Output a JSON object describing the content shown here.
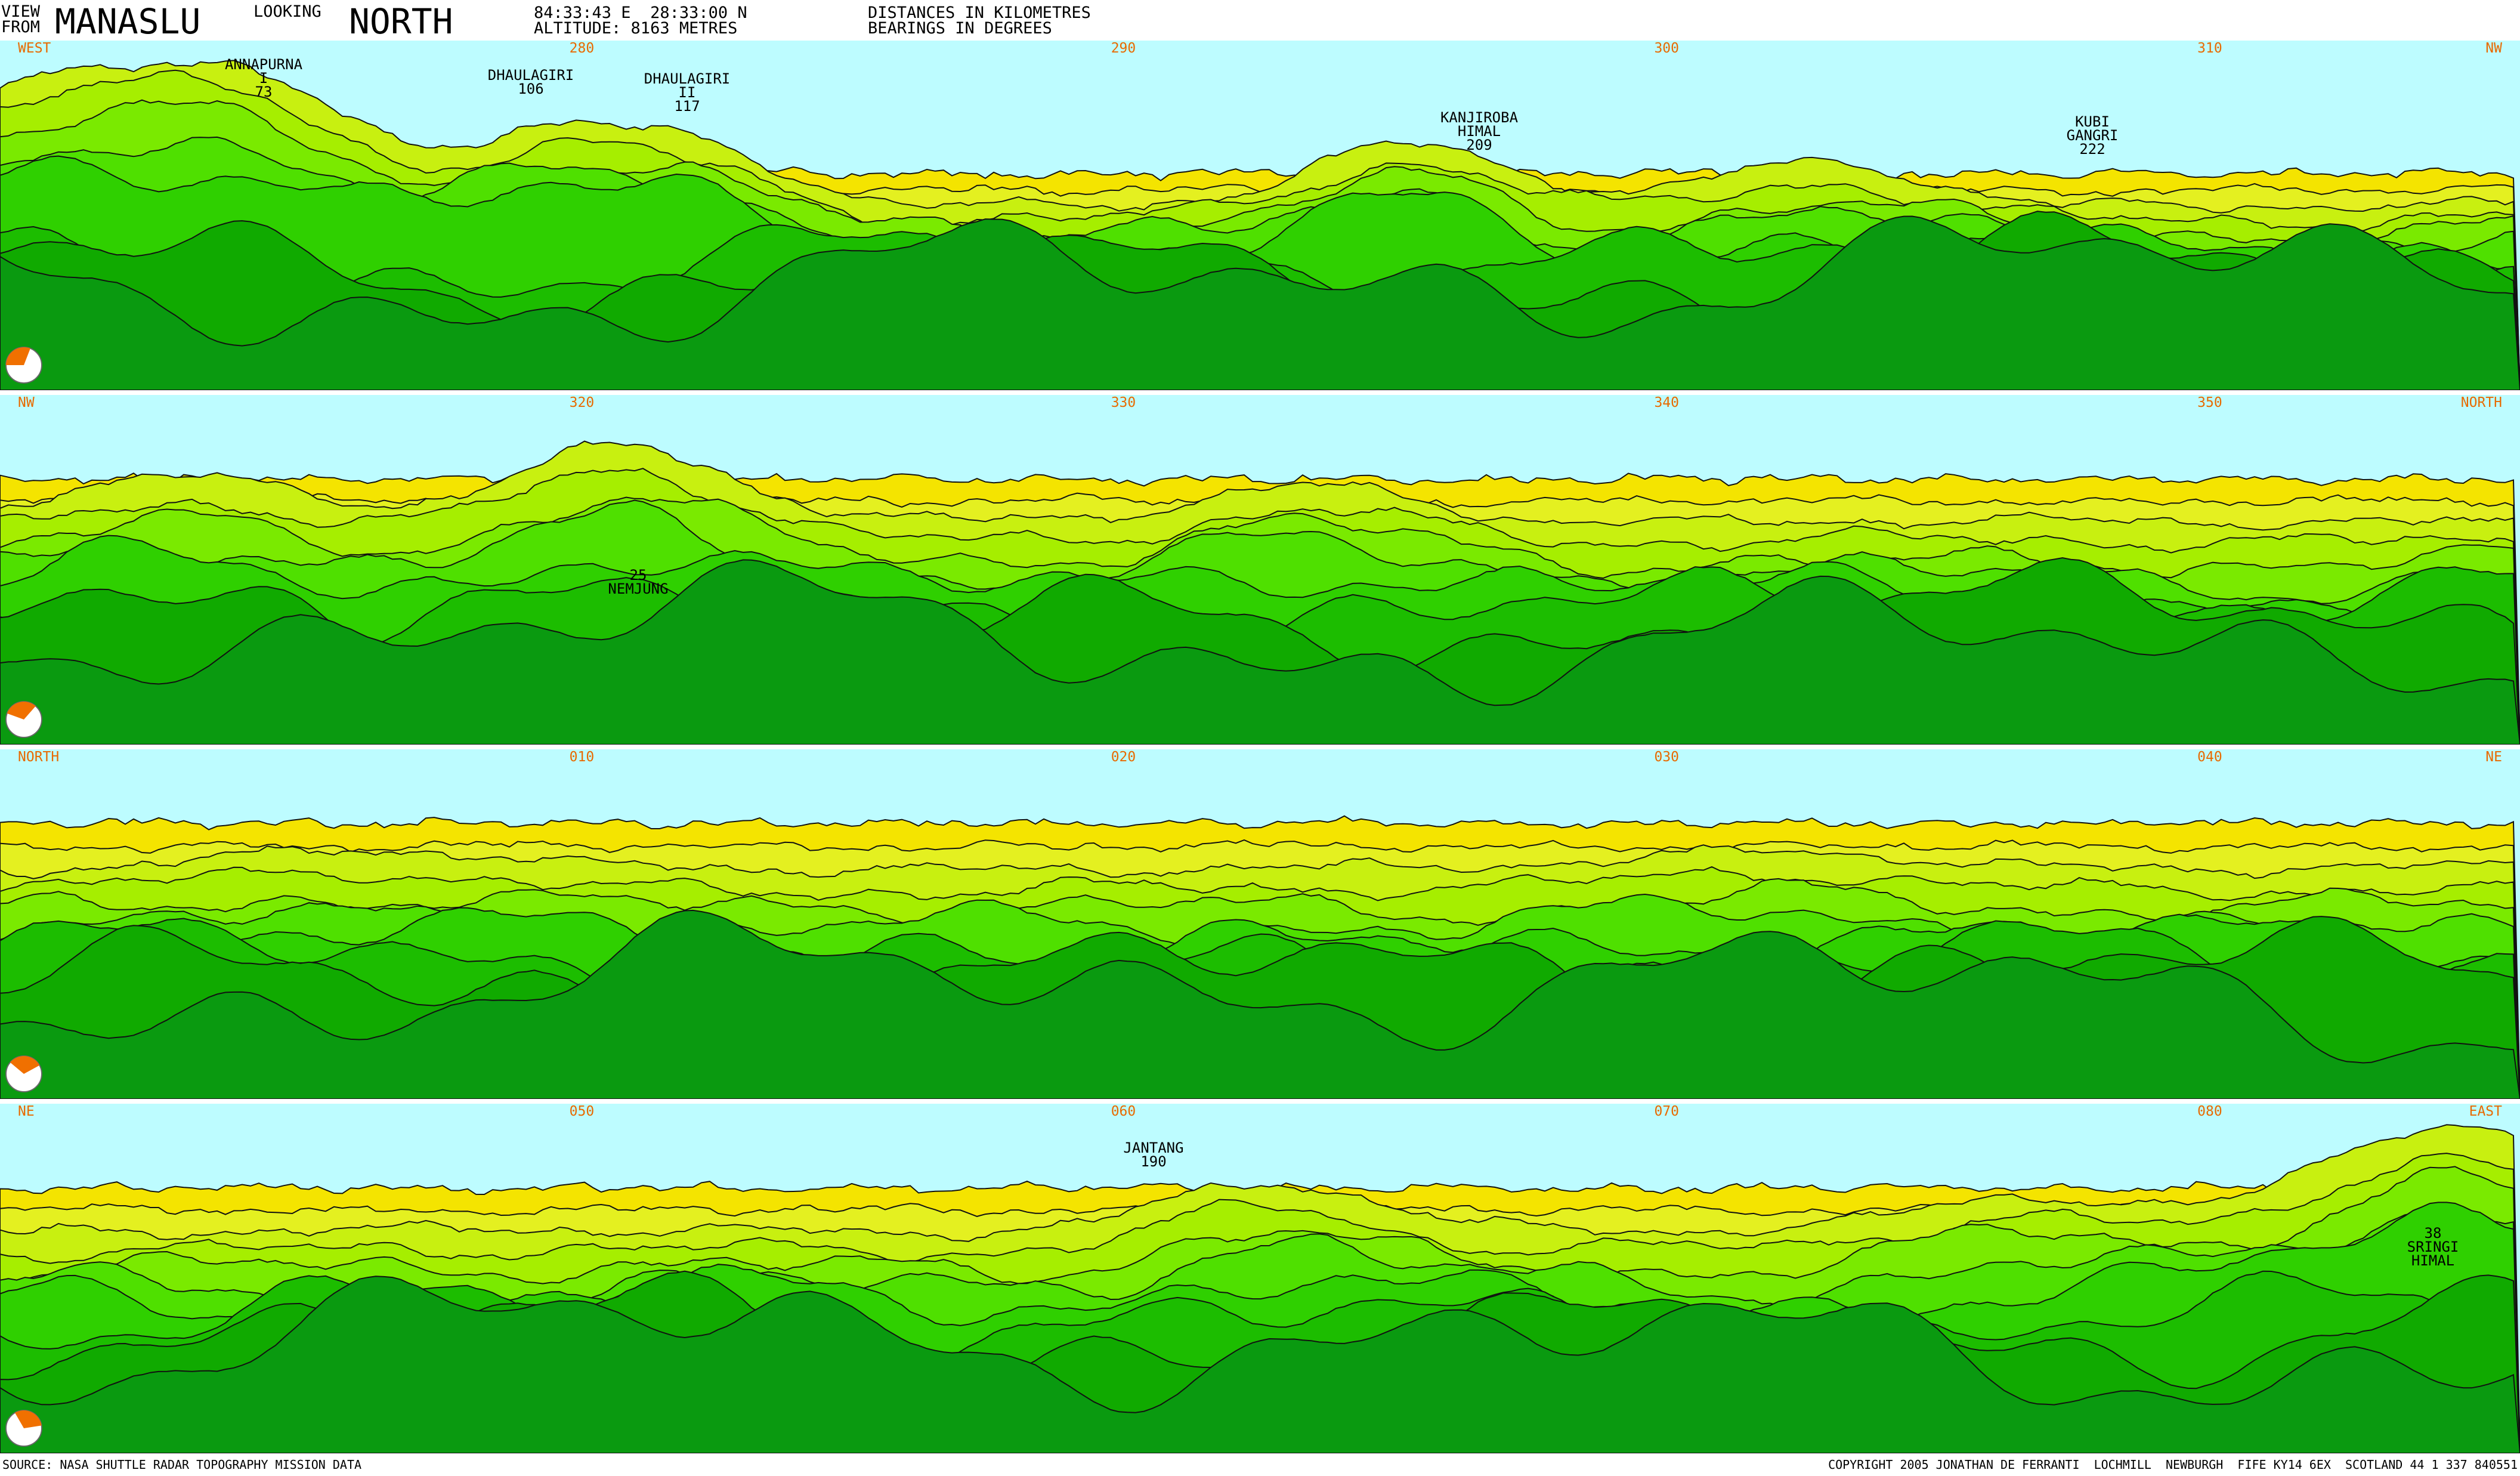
{
  "header": {
    "view": "VIEW",
    "from": "FROM",
    "place": "MANASLU",
    "looking": "LOOKING",
    "direction": "NORTH",
    "coordinates": "84:33:43 E  28:33:00 N",
    "altitude": "ALTITUDE: 8163 METRES",
    "distances": "DISTANCES IN KILOMETRES",
    "bearings": "BEARINGS IN DEGREES"
  },
  "panels": [
    {
      "bearings": [
        "WEST",
        "280",
        "290",
        "300",
        "310",
        "NW"
      ],
      "peaks": [
        {
          "lines": [
            "ANNAPURNA",
            "I",
            "73"
          ]
        },
        {
          "lines": [
            "DHAULAGIRI",
            "106"
          ]
        },
        {
          "lines": [
            "DHAULAGIRI",
            "II",
            "117"
          ]
        },
        {
          "lines": [
            "KANJIROBA",
            "HIMAL",
            "209"
          ]
        },
        {
          "lines": [
            "KUBI",
            "GANGRI",
            "222"
          ]
        }
      ]
    },
    {
      "bearings": [
        "NW",
        "320",
        "330",
        "340",
        "350",
        "NORTH"
      ],
      "peaks": [
        {
          "lines": [
            "25",
            "NEMJUNG"
          ]
        }
      ]
    },
    {
      "bearings": [
        "NORTH",
        "010",
        "020",
        "030",
        "040",
        "NE"
      ],
      "peaks": []
    },
    {
      "bearings": [
        "NE",
        "050",
        "060",
        "070",
        "080",
        "EAST"
      ],
      "peaks": [
        {
          "lines": [
            "JANTANG",
            "190"
          ]
        },
        {
          "lines": [
            "38",
            "SRINGI",
            "HIMAL"
          ]
        }
      ]
    }
  ],
  "footer": {
    "source": "SOURCE: NASA SHUTTLE RADAR TOPOGRAPHY MISSION DATA",
    "copyright": "COPYRIGHT 2005 JONATHAN DE FERRANTI  LOCHMILL  NEWBURGH  FIFE KY14 6EX  SCOTLAND 44 1 337 840551"
  }
}
